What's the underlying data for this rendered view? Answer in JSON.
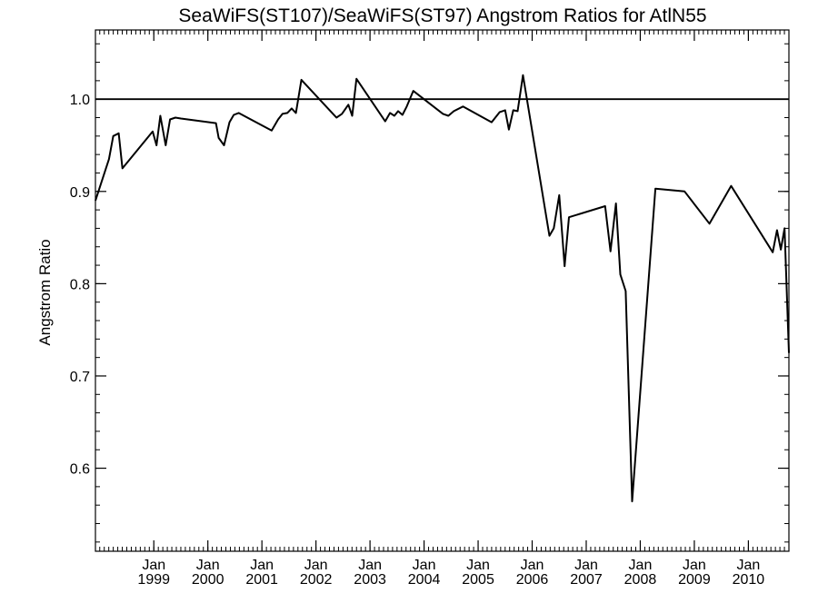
{
  "chart_data": {
    "type": "line",
    "title": "SeaWiFS(ST107)/SeaWiFS(ST97)  Angstrom Ratios for AtlN55",
    "ylabel": "Angstrom Ratio",
    "xlabel": "",
    "xlim": [
      1997.92,
      2010.75
    ],
    "ylim": [
      0.51,
      1.075
    ],
    "grid": false,
    "legend": "none",
    "reference_line": {
      "y": 1.0
    },
    "y_ticks": [
      {
        "value": 0.6,
        "label": "0.6"
      },
      {
        "value": 0.7,
        "label": "0.7"
      },
      {
        "value": 0.8,
        "label": "0.8"
      },
      {
        "value": 0.9,
        "label": "0.9"
      },
      {
        "value": 1.0,
        "label": "1.0"
      }
    ],
    "x_ticks": [
      {
        "value": 1999.0,
        "month": "Jan",
        "year": "1999"
      },
      {
        "value": 2000.0,
        "month": "Jan",
        "year": "2000"
      },
      {
        "value": 2001.0,
        "month": "Jan",
        "year": "2001"
      },
      {
        "value": 2002.0,
        "month": "Jan",
        "year": "2002"
      },
      {
        "value": 2003.0,
        "month": "Jan",
        "year": "2003"
      },
      {
        "value": 2004.0,
        "month": "Jan",
        "year": "2004"
      },
      {
        "value": 2005.0,
        "month": "Jan",
        "year": "2005"
      },
      {
        "value": 2006.0,
        "month": "Jan",
        "year": "2006"
      },
      {
        "value": 2007.0,
        "month": "Jan",
        "year": "2007"
      },
      {
        "value": 2008.0,
        "month": "Jan",
        "year": "2008"
      },
      {
        "value": 2009.0,
        "month": "Jan",
        "year": "2009"
      },
      {
        "value": 2010.0,
        "month": "Jan",
        "year": "2010"
      }
    ],
    "series": [
      {
        "color": "#000000",
        "points": [
          [
            1997.92,
            0.89
          ],
          [
            1998.17,
            0.935
          ],
          [
            1998.25,
            0.96
          ],
          [
            1998.35,
            0.963
          ],
          [
            1998.42,
            0.925
          ],
          [
            1998.98,
            0.965
          ],
          [
            1999.05,
            0.95
          ],
          [
            1999.12,
            0.982
          ],
          [
            1999.22,
            0.95
          ],
          [
            1999.3,
            0.978
          ],
          [
            1999.4,
            0.98
          ],
          [
            1999.5,
            0.979
          ],
          [
            2000.15,
            0.974
          ],
          [
            2000.2,
            0.958
          ],
          [
            2000.3,
            0.95
          ],
          [
            2000.4,
            0.975
          ],
          [
            2000.48,
            0.983
          ],
          [
            2000.57,
            0.985
          ],
          [
            2001.18,
            0.966
          ],
          [
            2001.3,
            0.978
          ],
          [
            2001.38,
            0.984
          ],
          [
            2001.47,
            0.985
          ],
          [
            2001.55,
            0.99
          ],
          [
            2001.63,
            0.985
          ],
          [
            2001.73,
            1.021
          ],
          [
            2002.38,
            0.98
          ],
          [
            2002.48,
            0.984
          ],
          [
            2002.6,
            0.994
          ],
          [
            2002.67,
            0.982
          ],
          [
            2002.75,
            1.022
          ],
          [
            2003.28,
            0.976
          ],
          [
            2003.37,
            0.985
          ],
          [
            2003.45,
            0.982
          ],
          [
            2003.52,
            0.987
          ],
          [
            2003.6,
            0.983
          ],
          [
            2003.68,
            0.992
          ],
          [
            2003.8,
            1.009
          ],
          [
            2004.35,
            0.984
          ],
          [
            2004.45,
            0.982
          ],
          [
            2004.55,
            0.987
          ],
          [
            2004.72,
            0.992
          ],
          [
            2005.25,
            0.975
          ],
          [
            2005.4,
            0.986
          ],
          [
            2005.5,
            0.988
          ],
          [
            2005.57,
            0.967
          ],
          [
            2005.65,
            0.988
          ],
          [
            2005.73,
            0.987
          ],
          [
            2005.83,
            1.026
          ],
          [
            2006.32,
            0.852
          ],
          [
            2006.4,
            0.86
          ],
          [
            2006.5,
            0.896
          ],
          [
            2006.6,
            0.819
          ],
          [
            2006.68,
            0.872
          ],
          [
            2007.35,
            0.884
          ],
          [
            2007.45,
            0.835
          ],
          [
            2007.55,
            0.887
          ],
          [
            2007.63,
            0.81
          ],
          [
            2007.73,
            0.792
          ],
          [
            2007.85,
            0.564
          ],
          [
            2008.28,
            0.903
          ],
          [
            2008.82,
            0.9
          ],
          [
            2009.28,
            0.865
          ],
          [
            2009.68,
            0.906
          ],
          [
            2010.45,
            0.834
          ],
          [
            2010.53,
            0.858
          ],
          [
            2010.6,
            0.837
          ],
          [
            2010.67,
            0.86
          ],
          [
            2010.75,
            0.725
          ]
        ]
      }
    ]
  }
}
